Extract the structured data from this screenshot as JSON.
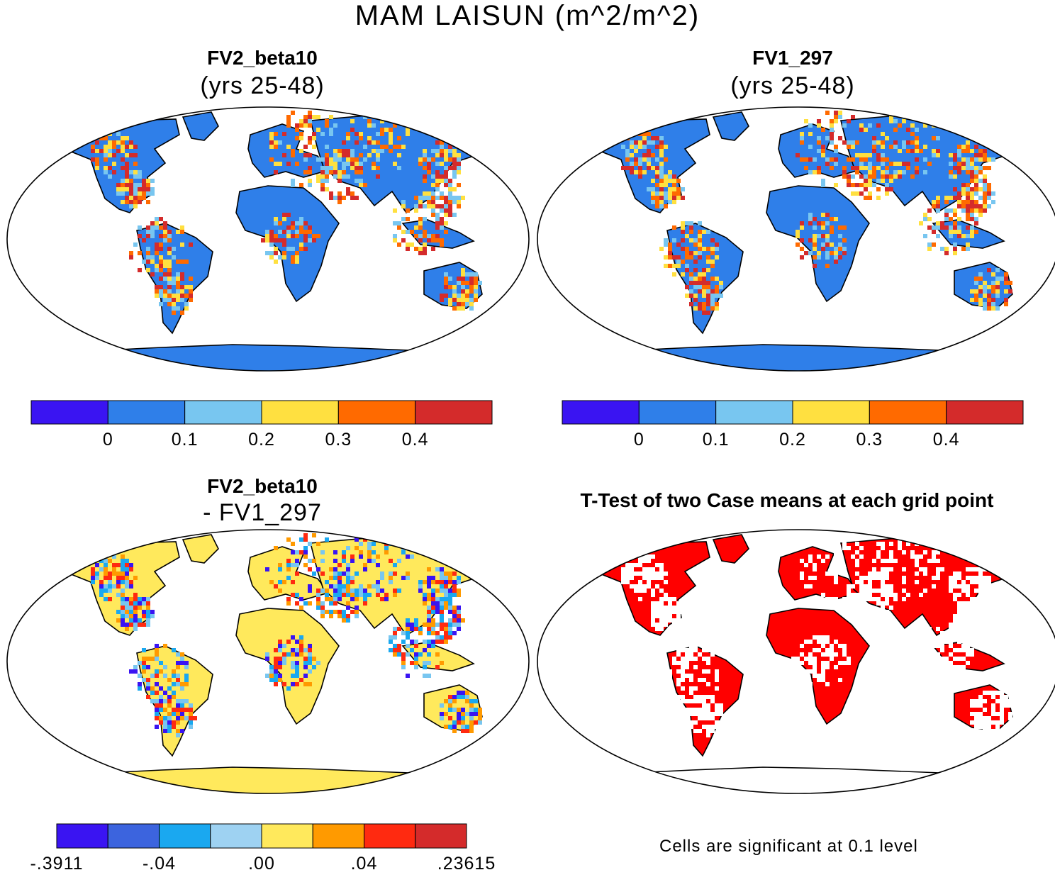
{
  "title": "MAM LAISUN (m^2/m^2)",
  "colors": {
    "frame": "#000000",
    "land_blue": "#2f7fe9",
    "red": "#d42b2b",
    "orange": "#ff6a00",
    "yellow": "#ffe040",
    "light_blue": "#78c6f0",
    "sig_red": "#ff0000",
    "diff_yellow": "#ffe95c"
  },
  "panels": [
    {
      "id": "top-left",
      "title": "FV2_beta10",
      "subtitle": "(yrs 25-48)",
      "land_color": "#2f7fe9",
      "antarctica_color": "#2f7fe9",
      "hotspot_colors": [
        "#d42b2b",
        "#ff6a00",
        "#ffe040",
        "#78c6f0"
      ],
      "colorbar": {
        "colors": [
          "#3a14f2",
          "#2f7fe9",
          "#78c6f0",
          "#ffe040",
          "#ff6a00",
          "#d42b2b"
        ],
        "ticks": [
          "0",
          "0.1",
          "0.2",
          "0.3",
          "0.4"
        ]
      }
    },
    {
      "id": "top-right",
      "title": "FV1_297",
      "subtitle": "(yrs 25-48)",
      "land_color": "#2f7fe9",
      "antarctica_color": "#2f7fe9",
      "hotspot_colors": [
        "#d42b2b",
        "#ff6a00",
        "#ffe040",
        "#78c6f0"
      ],
      "colorbar": {
        "colors": [
          "#3a14f2",
          "#2f7fe9",
          "#78c6f0",
          "#ffe040",
          "#ff6a00",
          "#d42b2b"
        ],
        "ticks": [
          "0",
          "0.1",
          "0.2",
          "0.3",
          "0.4"
        ]
      }
    },
    {
      "id": "bottom-left",
      "title": "FV2_beta10",
      "subtitle": "- FV1_297",
      "land_color": "#ffe95c",
      "antarctica_color": "#ffe95c",
      "hotspot_colors": [
        "#78c6f0",
        "#ff9a00",
        "#ff2a10",
        "#3a14f2",
        "#1aa8f0"
      ],
      "colorbar": {
        "colors": [
          "#3a14f2",
          "#3c64de",
          "#1aa8f0",
          "#9ed2f2",
          "#ffe95c",
          "#ff9a00",
          "#ff2a10",
          "#d42b2b"
        ],
        "ticks": [
          "-.3911",
          "-.04",
          ".00",
          ".04",
          ".23615"
        ]
      }
    },
    {
      "id": "bottom-right",
      "title": "T-Test of two Case means at each grid point",
      "subtitle": "",
      "land_color": "#ff0000",
      "antarctica_color": "#ffffff",
      "hotspot_colors": [
        "#ffffff"
      ],
      "note": "Cells are significant at 0.1 level"
    }
  ]
}
